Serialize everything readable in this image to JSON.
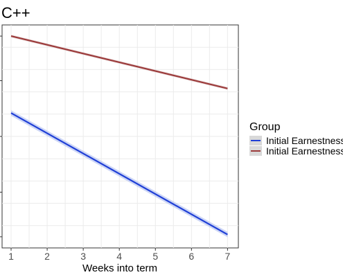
{
  "chart_data": {
    "type": "line",
    "title": "C++",
    "xlabel": "Weeks into term",
    "ylabel": "",
    "xlim": [
      0.75,
      7.3
    ],
    "x_ticks": [
      1,
      2,
      3,
      4,
      5,
      6,
      7
    ],
    "ylim": [
      0,
      100
    ],
    "grid": true,
    "legend": {
      "title": "Group",
      "position": "right"
    },
    "series": [
      {
        "name": "Initial Earnestness",
        "color": "#1f3fd6",
        "band_color": "#b8c4f2",
        "x": [
          1,
          7
        ],
        "y": [
          60.5,
          6.0
        ]
      },
      {
        "name": "Initial Earnestness",
        "color": "#9b3a3a",
        "band_color": "#e0c9c9",
        "x": [
          1,
          7
        ],
        "y": [
          95.0,
          71.5
        ]
      }
    ]
  }
}
